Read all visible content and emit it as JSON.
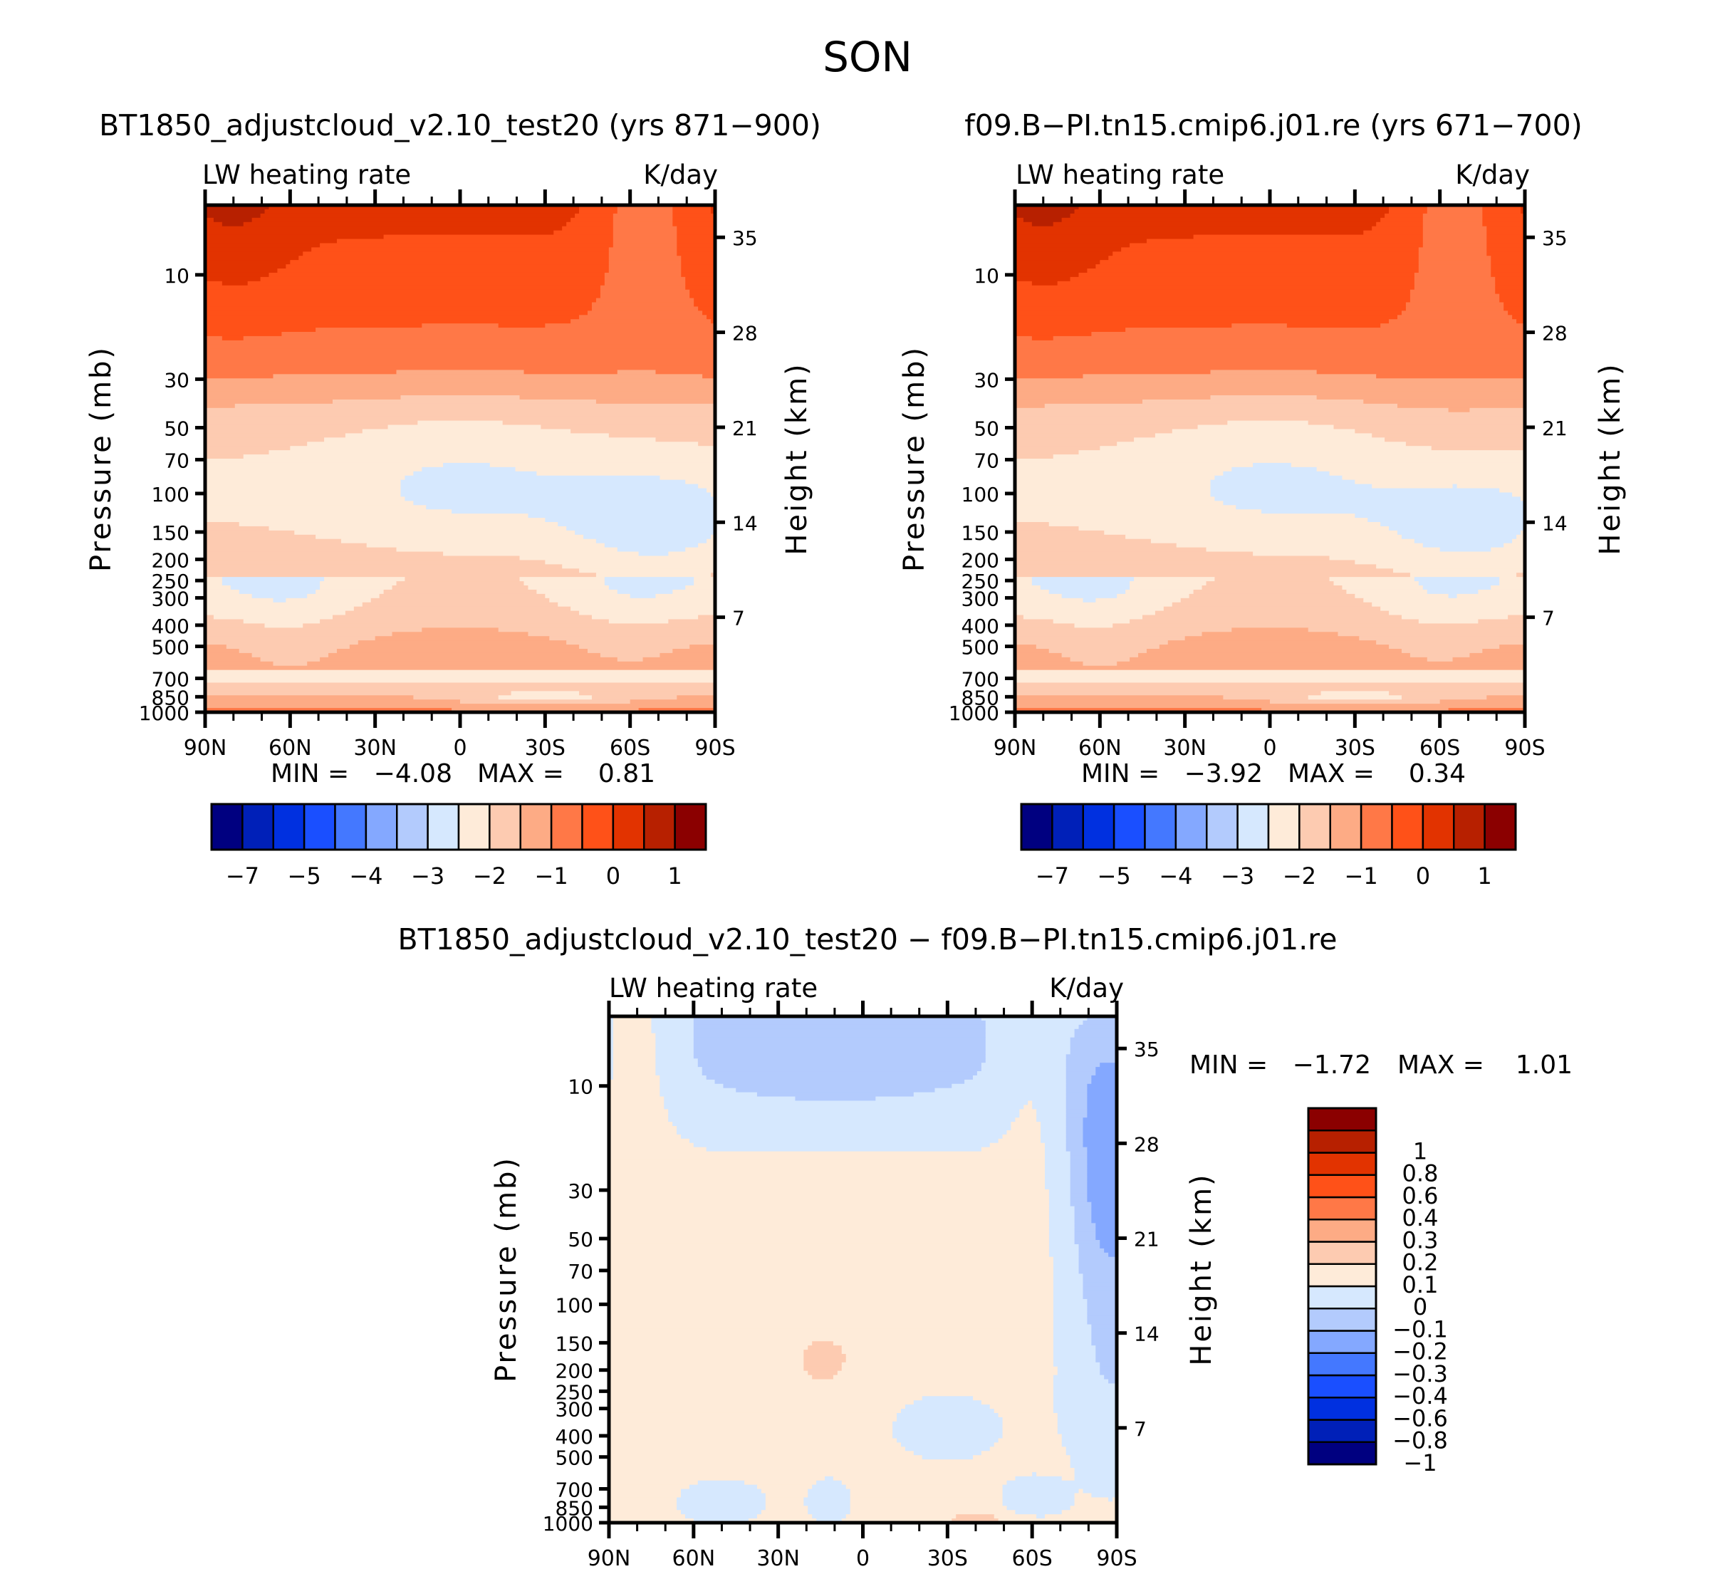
{
  "figure": {
    "title": "SON"
  },
  "chart_data": [
    {
      "type": "heatmap",
      "id": "panel-test",
      "title": "BT1850_adjustcloud_v2.10_test20 (yrs 871−900)",
      "left_string": "LW heating rate",
      "right_string": "K/day",
      "xlabel": "",
      "ylabel": "Pressure (mb)",
      "ylabel_right": "Height (km)",
      "x_ticks": [
        "90N",
        "60N",
        "30N",
        "0",
        "30S",
        "60S",
        "90S"
      ],
      "x_range": [
        90,
        -90
      ],
      "y_ticks": [
        10,
        30,
        50,
        70,
        100,
        150,
        200,
        250,
        300,
        400,
        500,
        700,
        850,
        1000
      ],
      "y_range_mb": [
        1000,
        4.8
      ],
      "y_right_ticks_km": [
        35,
        28,
        21,
        14,
        7
      ],
      "min_label": "MIN =",
      "min_value": "−4.08",
      "max_label": "MAX =",
      "max_value": "0.81",
      "colorbar": {
        "orientation": "horizontal",
        "labels": [
          "−7",
          "−5",
          "−4",
          "−3",
          "−2",
          "−1",
          "0",
          "1"
        ],
        "label_at_boundary": [
          0,
          2,
          4,
          6,
          8,
          10,
          12,
          14
        ]
      },
      "contour_levels": [
        -7,
        -6,
        -5,
        -4.5,
        -4,
        -3.5,
        -3,
        -2.5,
        -2,
        -1.5,
        -1,
        -0.5,
        0,
        0.5,
        1
      ],
      "bands": [
        {
          "color_index": 9,
          "points": [
            [
              90,
              4.8
            ],
            [
              -90,
              4.8
            ],
            [
              -90,
              1000
            ],
            [
              90,
              1000
            ]
          ]
        },
        {
          "color_index": 8,
          "points": [
            [
              90,
              5.2
            ],
            [
              82,
              4.8
            ],
            [
              -90,
              4.8
            ],
            [
              -90,
              8
            ],
            [
              -78,
              13
            ],
            [
              -68,
              15
            ],
            [
              -55,
              11
            ],
            [
              -40,
              9.5
            ],
            [
              -25,
              9
            ],
            [
              -10,
              8.5
            ],
            [
              -2,
              10.5
            ],
            [
              5,
              8.5
            ],
            [
              20,
              8.5
            ],
            [
              40,
              8.3
            ],
            [
              55,
              7.5
            ],
            [
              70,
              6
            ],
            [
              90,
              5.5
            ]
          ]
        },
        {
          "color_index": 7,
          "points": [
            [
              74,
              4.8
            ],
            [
              -90,
              4.8
            ],
            [
              -90,
              5.2
            ],
            [
              -78,
              8
            ],
            [
              -68,
              9.5
            ],
            [
              -55,
              7.2
            ],
            [
              -40,
              6.5
            ],
            [
              -25,
              6.3
            ],
            [
              -10,
              6.2
            ],
            [
              -2,
              7.4
            ],
            [
              5,
              6.1
            ],
            [
              20,
              6.2
            ],
            [
              40,
              5.8
            ],
            [
              55,
              5.2
            ],
            [
              65,
              4.8
            ]
          ]
        },
        {
          "color_index": 6,
          "points": [
            [
              60,
              4.8
            ],
            [
              -90,
              4.8
            ],
            [
              -90,
              4.8
            ],
            [
              -80,
              6
            ],
            [
              -70,
              6.5
            ],
            [
              -55,
              5.5
            ],
            [
              -40,
              5.1
            ],
            [
              -20,
              5
            ],
            [
              -2,
              5.4
            ],
            [
              10,
              5
            ],
            [
              30,
              5
            ],
            [
              50,
              4.8
            ]
          ]
        },
        {
          "color_index": 5,
          "points": [
            [
              30,
              4.8
            ],
            [
              -90,
              4.8
            ],
            [
              -84,
              5.3
            ],
            [
              -72,
              5.4
            ],
            [
              -60,
              5
            ],
            [
              -40,
              4.9
            ],
            [
              -2,
              5
            ],
            [
              20,
              4.9
            ]
          ]
        },
        {
          "color_index": 9,
          "points": [
            [
              90,
              9
            ],
            [
              84,
              8
            ],
            [
              70,
              10
            ],
            [
              60,
              14
            ],
            [
              50,
              18
            ],
            [
              35,
              20
            ],
            [
              20,
              18
            ],
            [
              6,
              18.5
            ],
            [
              -2,
              20.5
            ],
            [
              8,
              17
            ],
            [
              20,
              16
            ],
            [
              40,
              15.5
            ],
            [
              -40,
              15
            ],
            [
              -55,
              14
            ],
            [
              -70,
              18
            ],
            [
              -82,
              17
            ],
            [
              -90,
              13
            ],
            [
              -90,
              1000
            ],
            [
              90,
              1000
            ]
          ]
        },
        {
          "color_index": 10,
          "points": [
            [
              90,
              11
            ],
            [
              84,
              12
            ],
            [
              70,
              19
            ],
            [
              60,
              28
            ],
            [
              45,
              33
            ],
            [
              30,
              30
            ],
            [
              10,
              27
            ],
            [
              -2,
              28
            ],
            [
              -10,
              25
            ],
            [
              -25,
              24
            ],
            [
              -40,
              26
            ],
            [
              -55,
              31
            ],
            [
              -68,
              46
            ],
            [
              -78,
              33
            ],
            [
              -90,
              22
            ],
            [
              -90,
              1000
            ],
            [
              90,
              1000
            ]
          ]
        }
      ]
    },
    {
      "type": "heatmap",
      "id": "panel-control",
      "title": "f09.B−PI.tn15.cmip6.j01.re (yrs 671−700)",
      "left_string": "LW heating rate",
      "right_string": "K/day",
      "xlabel": "",
      "ylabel": "Pressure (mb)",
      "ylabel_right": "Height (km)",
      "x_ticks": [
        "90N",
        "60N",
        "30N",
        "0",
        "30S",
        "60S",
        "90S"
      ],
      "x_range": [
        90,
        -90
      ],
      "y_ticks": [
        10,
        30,
        50,
        70,
        100,
        150,
        200,
        250,
        300,
        400,
        500,
        700,
        850,
        1000
      ],
      "y_range_mb": [
        1000,
        4.8
      ],
      "y_right_ticks_km": [
        35,
        28,
        21,
        14,
        7
      ],
      "min_label": "MIN =",
      "min_value": "−3.92",
      "max_label": "MAX =",
      "max_value": "0.34",
      "colorbar": {
        "orientation": "horizontal",
        "labels": [
          "−7",
          "−5",
          "−4",
          "−3",
          "−2",
          "−1",
          "0",
          "1"
        ],
        "label_at_boundary": [
          0,
          2,
          4,
          6,
          8,
          10,
          12,
          14
        ]
      },
      "contour_levels": [
        -7,
        -6,
        -5,
        -4.5,
        -4,
        -3.5,
        -3,
        -2.5,
        -2,
        -1.5,
        -1,
        -0.5,
        0,
        0.5,
        1
      ]
    },
    {
      "type": "heatmap",
      "id": "panel-diff",
      "title": "BT1850_adjustcloud_v2.10_test20 − f09.B−PI.tn15.cmip6.j01.re",
      "left_string": "LW heating rate",
      "right_string": "K/day",
      "xlabel": "",
      "ylabel": "Pressure (mb)",
      "ylabel_right": "Height (km)",
      "x_ticks": [
        "90N",
        "60N",
        "30N",
        "0",
        "30S",
        "60S",
        "90S"
      ],
      "x_range": [
        90,
        -90
      ],
      "y_ticks": [
        10,
        30,
        50,
        70,
        100,
        150,
        200,
        250,
        300,
        400,
        500,
        700,
        850,
        1000
      ],
      "y_range_mb": [
        1000,
        4.8
      ],
      "y_right_ticks_km": [
        35,
        28,
        21,
        14,
        7
      ],
      "min_label": "MIN =",
      "min_value": "−1.72",
      "max_label": "MAX =",
      "max_value": "1.01",
      "colorbar": {
        "orientation": "vertical",
        "labels": [
          "−1",
          "−0.8",
          "−0.6",
          "−0.4",
          "−0.3",
          "−0.2",
          "−0.1",
          "0",
          "0.1",
          "0.2",
          "0.3",
          "0.4",
          "0.6",
          "0.8",
          "1"
        ],
        "label_at_boundary": [
          0,
          1,
          2,
          3,
          4,
          5,
          6,
          7,
          8,
          9,
          10,
          11,
          12,
          13,
          14
        ]
      },
      "contour_levels": [
        -1,
        -0.8,
        -0.6,
        -0.4,
        -0.3,
        -0.2,
        -0.1,
        0,
        0.1,
        0.2,
        0.3,
        0.4,
        0.6,
        0.8,
        1
      ]
    }
  ],
  "colormap": [
    "#000080",
    "#0020b8",
    "#0030e0",
    "#1a4fff",
    "#4478ff",
    "#84a8ff",
    "#b3cbfd",
    "#d6e8fe",
    "#feebd9",
    "#fdcbb1",
    "#fdab85",
    "#ff7847",
    "#ff5118",
    "#e23300",
    "#b72000",
    "#8b0000"
  ]
}
